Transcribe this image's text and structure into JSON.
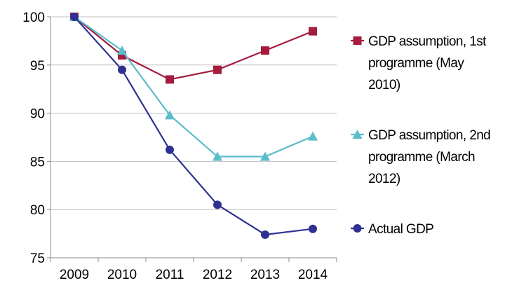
{
  "chart_data": {
    "type": "line",
    "categories": [
      "2009",
      "2010",
      "2011",
      "2012",
      "2013",
      "2014"
    ],
    "x": [
      2009,
      2010,
      2011,
      2012,
      2013,
      2014
    ],
    "ylim": [
      75,
      100
    ],
    "yticks": [
      75,
      80,
      85,
      90,
      95,
      100
    ],
    "grid": "horizontal",
    "legend_position": "right",
    "series": [
      {
        "name": "GDP assumption, 1st programme (May 2010)",
        "legend_lines": [
          "GDP assumption, 1st",
          "programme (May",
          "2010)"
        ],
        "color": "#a51c3e",
        "marker": "square",
        "values": [
          100,
          96,
          93.5,
          94.5,
          96.5,
          98.5
        ]
      },
      {
        "name": "GDP assumption, 2nd programme (March 2012)",
        "legend_lines": [
          "GDP assumption, 2nd",
          "programme (March",
          "2012)"
        ],
        "color": "#5bbccc",
        "marker": "triangle",
        "values": [
          100,
          96.5,
          89.8,
          85.5,
          85.5,
          87.6
        ]
      },
      {
        "name": "Actual GDP",
        "legend_lines": [
          "Actual GDP"
        ],
        "color": "#2e3192",
        "marker": "circle",
        "values": [
          100,
          94.5,
          86.2,
          80.5,
          77.4,
          78
        ]
      }
    ]
  }
}
